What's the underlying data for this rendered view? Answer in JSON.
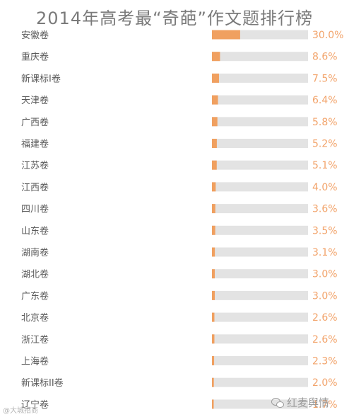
{
  "chart_data": {
    "type": "bar",
    "title": "2014年高考最“奇葩”作文题排行榜",
    "categories": [
      "安徽卷",
      "重庆卷",
      "新课标I卷",
      "天津卷",
      "广西卷",
      "福建卷",
      "江苏卷",
      "江西卷",
      "四川卷",
      "山东卷",
      "湖南卷",
      "湖北卷",
      "广东卷",
      "北京卷",
      "浙江卷",
      "上海卷",
      "新课标II卷",
      "辽宁卷"
    ],
    "values": [
      30.0,
      8.6,
      7.5,
      6.4,
      5.8,
      5.2,
      5.1,
      4.0,
      3.6,
      3.5,
      3.1,
      3.0,
      3.0,
      2.6,
      2.6,
      2.3,
      2.0,
      1.7
    ],
    "value_labels": [
      "30.0%",
      "8.6%",
      "7.5%",
      "6.4%",
      "5.8%",
      "5.2%",
      "5.1%",
      "4.0%",
      "3.6%",
      "3.5%",
      "3.1%",
      "3.0%",
      "3.0%",
      "2.6%",
      "2.6%",
      "2.3%",
      "2.0%",
      "1.7%"
    ],
    "xlim": [
      0,
      100
    ],
    "orientation": "horizontal",
    "grid": false,
    "colors": {
      "bar": "#f0a060",
      "track": "#e3e3e3",
      "value_text": "#f2a36a"
    }
  },
  "watermarks": {
    "left": "@大城招商",
    "right": "红麦舆情"
  }
}
